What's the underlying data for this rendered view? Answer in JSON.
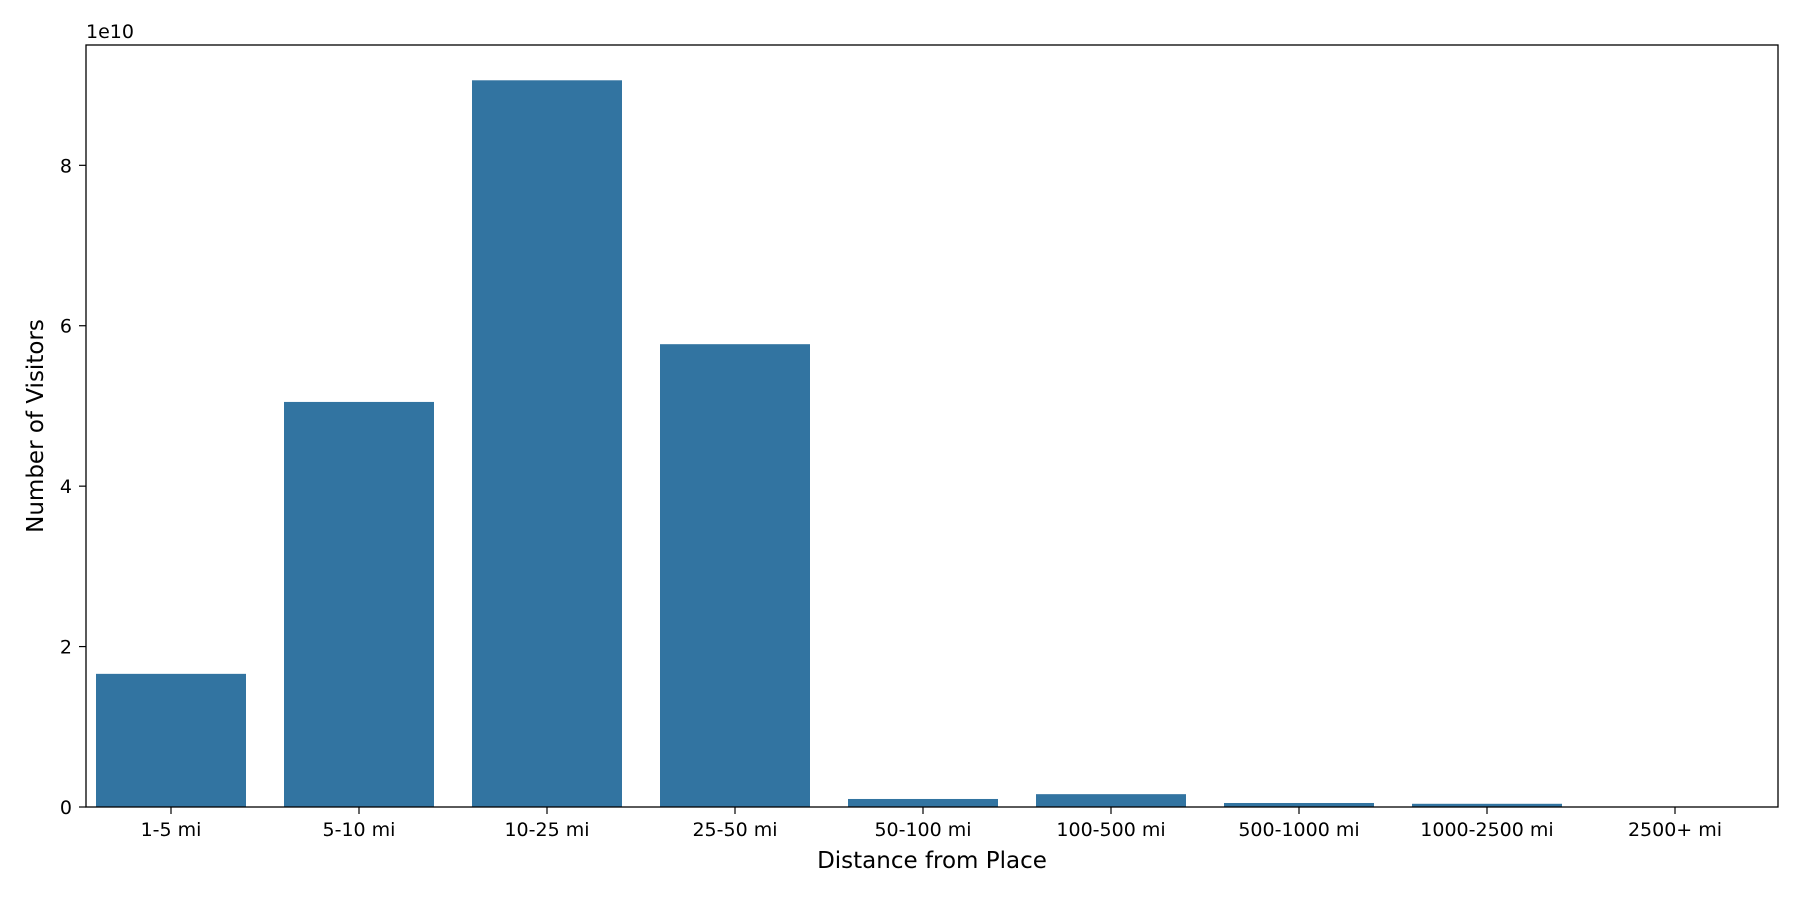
{
  "chart_data": {
    "type": "bar",
    "categories": [
      "1-5 mi",
      "5-10 mi",
      "10-25 mi",
      "25-50 mi",
      "50-100 mi",
      "100-500 mi",
      "500-1000 mi",
      "1000-2500 mi",
      "2500+ mi"
    ],
    "values": [
      16600000000,
      50500000000,
      90600000000,
      57700000000,
      1000000000,
      1600000000,
      500000000,
      400000000,
      0
    ],
    "title": "",
    "xlabel": "Distance from Place",
    "ylabel": "Number of Visitors",
    "ylim": [
      0,
      95000000000
    ],
    "yticks": [
      0,
      20000000000,
      40000000000,
      60000000000,
      80000000000
    ],
    "ytick_labels": [
      "0",
      "2",
      "4",
      "6",
      "8"
    ],
    "y_offset_label": "1e10",
    "bar_color": "#3274a1",
    "grid": false,
    "legend": "none"
  }
}
